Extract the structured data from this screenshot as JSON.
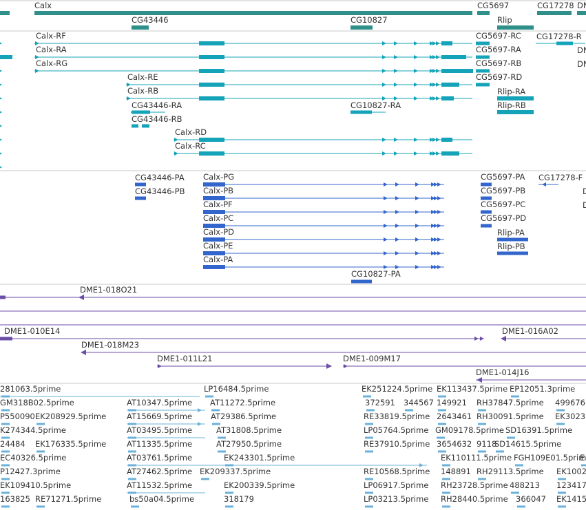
{
  "colors": {
    "gene": "#2f8f8b",
    "mrna": "#14a3b8",
    "protein": "#3366cc",
    "clone": "#6b4ea8",
    "est": "#6bb0d8",
    "divider": "#c8c8c8"
  },
  "genes": {
    "labels": [
      {
        "text": "Calx"
      },
      {
        "text": "CG5697"
      },
      {
        "text": "CG17278"
      },
      {
        "text": "DN"
      },
      {
        "text": "CG43446"
      },
      {
        "text": "CG10827"
      },
      {
        "text": "Rlip"
      }
    ]
  },
  "transcripts": {
    "labels": [
      {
        "text": "Calx-RF"
      },
      {
        "text": "Calx-RA"
      },
      {
        "text": "Calx-RG"
      },
      {
        "text": "Calx-RE"
      },
      {
        "text": "Calx-RB"
      },
      {
        "text": "CG43446-RA"
      },
      {
        "text": "CG43446-RB"
      },
      {
        "text": "Calx-RD"
      },
      {
        "text": "Calx-RC"
      },
      {
        "text": "CG10827-RA"
      },
      {
        "text": "CG5697-RC"
      },
      {
        "text": "CG5697-RA"
      },
      {
        "text": "CG5697-RB"
      },
      {
        "text": "CG5697-RD"
      },
      {
        "text": "Rlip-RA"
      },
      {
        "text": "Rlip-RB"
      },
      {
        "text": "CG17278-R"
      },
      {
        "text": "DN"
      },
      {
        "text": "DN"
      }
    ]
  },
  "proteins": {
    "labels": [
      {
        "text": "CG43446-PA"
      },
      {
        "text": "CG43446-PB"
      },
      {
        "text": "Calx-PG"
      },
      {
        "text": "Calx-PB"
      },
      {
        "text": "Calx-PF"
      },
      {
        "text": "Calx-PC"
      },
      {
        "text": "Calx-PD"
      },
      {
        "text": "Calx-PE"
      },
      {
        "text": "Calx-PA"
      },
      {
        "text": "CG10827-PA"
      },
      {
        "text": "CG5697-PA"
      },
      {
        "text": "CG5697-PB"
      },
      {
        "text": "CG5697-PC"
      },
      {
        "text": "CG5697-PD"
      },
      {
        "text": "Rlip-PA"
      },
      {
        "text": "Rlip-PB"
      },
      {
        "text": "CG17278-F"
      },
      {
        "text": "D"
      },
      {
        "text": "D"
      }
    ]
  },
  "clones": {
    "labels": [
      {
        "text": "DME1-018O21"
      },
      {
        "text": "DME1-010E14"
      },
      {
        "text": "DME1-016A02"
      },
      {
        "text": "DME1-018M23"
      },
      {
        "text": "DME1-011L21"
      },
      {
        "text": "DME1-009M17"
      },
      {
        "text": "DME1-014J16"
      }
    ]
  },
  "ests": {
    "labels": [
      {
        "text": "281063.5prime"
      },
      {
        "text": "LP16484.5prime"
      },
      {
        "text": "EK251224.5prime"
      },
      {
        "text": "EK113437.5prime"
      },
      {
        "text": "EP12051.3prime"
      },
      {
        "text": "GM318B02.5prime"
      },
      {
        "text": "AT10347.5prime"
      },
      {
        "text": "AT11272.5prime"
      },
      {
        "text": "372591"
      },
      {
        "text": "344567"
      },
      {
        "text": "149921"
      },
      {
        "text": "RH37847.5prime"
      },
      {
        "text": "499676"
      },
      {
        "text": "P550090"
      },
      {
        "text": "EK208929.5prime"
      },
      {
        "text": "AT15669.5prime"
      },
      {
        "text": "AT29386.5prime"
      },
      {
        "text": "RE33819.5prime"
      },
      {
        "text": "2643461"
      },
      {
        "text": "RH30091.5prime"
      },
      {
        "text": "EK3023"
      },
      {
        "text": "K274344.5prime"
      },
      {
        "text": "AT03495.5prime"
      },
      {
        "text": "AT31808.5prime"
      },
      {
        "text": "LP05764.5prime"
      },
      {
        "text": "GM09178.5prime"
      },
      {
        "text": "SD16391.5prime"
      },
      {
        "text": "24484"
      },
      {
        "text": "EK176335.5prime"
      },
      {
        "text": "AT11335.5prime"
      },
      {
        "text": "AT27950.5prime"
      },
      {
        "text": "RE37910.5prime"
      },
      {
        "text": "3654632"
      },
      {
        "text": "9118"
      },
      {
        "text": "SD14615.5prime"
      },
      {
        "text": "EC40326.5prime"
      },
      {
        "text": "AT03761.5prime"
      },
      {
        "text": "EK243301.5prime"
      },
      {
        "text": "EK110111.5prime"
      },
      {
        "text": "FGH109E01.5prime"
      },
      {
        "text": "E"
      },
      {
        "text": "P12427.3prime"
      },
      {
        "text": "AT27462.5prime"
      },
      {
        "text": "EK209337.5prime"
      },
      {
        "text": "RE10568.5prime"
      },
      {
        "text": "148891"
      },
      {
        "text": "RH29113.5prime"
      },
      {
        "text": "EK1002"
      },
      {
        "text": "EK109410.5prime"
      },
      {
        "text": "AT11532.5prime"
      },
      {
        "text": "EK200339.5prime"
      },
      {
        "text": "LP06917.5prime"
      },
      {
        "text": "RH23728.5prime"
      },
      {
        "text": "488213"
      },
      {
        "text": "123417"
      },
      {
        "text": "163825"
      },
      {
        "text": "RE71271.5prime"
      },
      {
        "text": "bs50a04.5prime"
      },
      {
        "text": "318179"
      },
      {
        "text": "LP03213.5prime"
      },
      {
        "text": "RH28440.5prime"
      },
      {
        "text": "366047"
      },
      {
        "text": "EK1415"
      }
    ]
  }
}
